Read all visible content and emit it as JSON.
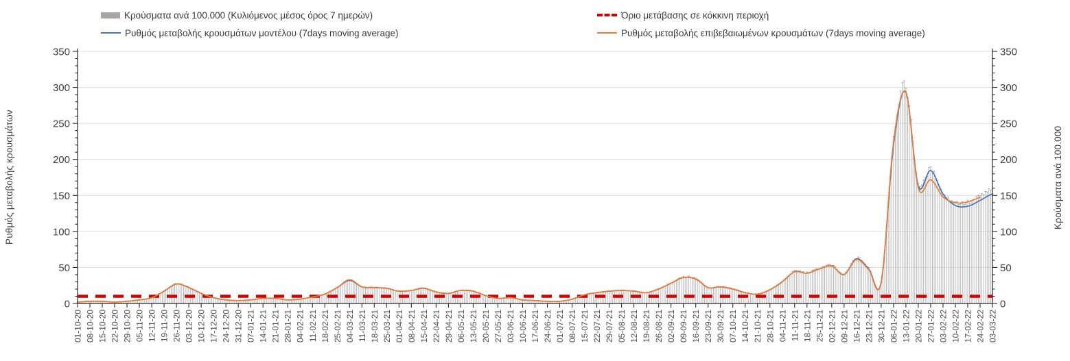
{
  "legend": {
    "items": [
      {
        "key": "cases-bars",
        "label": "Κρούσματα ανά 100.000 (Κυλιόμενος μέσος όρος 7 ημερών)",
        "swatch": "bar",
        "color": "#a6a6a6"
      },
      {
        "key": "red-threshold",
        "label": "Όριο μετάβασης σε κόκκινη περιοχή",
        "swatch": "dash",
        "color": "#d40000"
      },
      {
        "key": "model-rate",
        "label": "Ρυθμός μεταβολής κρουσμάτων μοντέλου (7days moving average)",
        "swatch": "line",
        "color": "#4472c4"
      },
      {
        "key": "confirmed-rate",
        "label": "Ρυθμός μεταβολής επιβεβαιωμένων κρουσμάτων (7days moving average)",
        "swatch": "line",
        "color": "#ed7d31"
      }
    ]
  },
  "axes": {
    "left_title": "Ρυθμός μεταβολής κρουσμάτων",
    "right_title": "Κρούσματα ανά 100.000",
    "y_ticks": [
      0,
      50,
      100,
      150,
      200,
      250,
      300,
      350
    ],
    "y_minor_step": 10,
    "ylim": [
      0,
      350
    ],
    "grid": "horizontal-major"
  },
  "chart_data": {
    "type": "bar+line",
    "title": "",
    "xlabel": "",
    "ylabel_left": "Ρυθμός μεταβολής κρουσμάτων",
    "ylabel_right": "Κρούσματα ανά 100.000",
    "ylim": [
      0,
      350
    ],
    "y_tick_step": 50,
    "legend_position": "top",
    "x": [
      "01-10-20",
      "08-10-20",
      "15-10-20",
      "22-10-20",
      "29-10-20",
      "05-11-20",
      "12-11-20",
      "19-11-20",
      "26-11-20",
      "03-12-20",
      "10-12-20",
      "17-12-20",
      "24-12-20",
      "31-12-20",
      "07-01-21",
      "14-01-21",
      "21-01-21",
      "28-01-21",
      "04-02-21",
      "11-02-21",
      "18-02-21",
      "25-02-21",
      "04-03-21",
      "11-03-21",
      "18-03-21",
      "25-03-21",
      "01-04-21",
      "08-04-21",
      "15-04-21",
      "22-04-21",
      "29-04-21",
      "06-05-21",
      "13-05-21",
      "20-05-21",
      "27-05-21",
      "03-06-21",
      "10-06-21",
      "17-06-21",
      "24-06-21",
      "01-07-21",
      "08-07-21",
      "15-07-21",
      "22-07-21",
      "29-07-21",
      "05-08-21",
      "12-08-21",
      "19-08-21",
      "26-08-21",
      "02-09-21",
      "09-09-21",
      "16-09-21",
      "23-09-21",
      "30-09-21",
      "07-10-21",
      "14-10-21",
      "21-10-21",
      "28-10-21",
      "04-11-21",
      "11-11-21",
      "18-11-21",
      "25-11-21",
      "02-12-21",
      "09-12-21",
      "16-12-21",
      "23-12-21",
      "30-12-21",
      "06-01-22",
      "13-01-22",
      "20-01-22",
      "27-01-22",
      "03-02-22",
      "10-02-22",
      "17-02-22",
      "24-02-22",
      "03-03-22"
    ],
    "series": [
      {
        "name": "Κρούσματα ανά 100.000 (Κυλιόμενος μέσος όρος 7 ημερών)",
        "type": "bar",
        "color": "#b4b4b4",
        "cap_color": "#9c9c9c",
        "values": [
          2,
          3,
          3,
          2,
          3,
          5,
          8,
          17,
          27,
          22,
          14,
          8,
          5,
          4,
          5,
          7,
          7,
          5,
          6,
          9,
          13,
          22,
          32,
          23,
          22,
          21,
          17,
          18,
          21,
          16,
          14,
          18,
          17,
          11,
          7,
          8,
          5,
          4,
          3,
          3,
          6,
          12,
          15,
          17,
          18,
          17,
          15,
          20,
          28,
          36,
          34,
          22,
          23,
          20,
          15,
          13,
          19,
          30,
          44,
          42,
          48,
          52,
          40,
          62,
          48,
          29,
          225,
          295,
          165,
          182,
          150,
          138,
          137,
          146,
          155
        ]
      },
      {
        "name": "Ρυθμός μεταβολής κρουσμάτων μοντέλου (7days moving average)",
        "type": "line",
        "color": "#4472c4",
        "values": [
          2,
          3,
          3,
          2,
          3,
          5,
          8,
          17,
          27,
          22,
          14,
          8,
          5,
          4,
          5,
          7,
          7,
          5,
          6,
          9,
          13,
          22,
          32,
          23,
          22,
          21,
          17,
          18,
          21,
          16,
          14,
          18,
          17,
          11,
          7,
          8,
          5,
          4,
          3,
          3,
          6,
          12,
          15,
          17,
          18,
          17,
          15,
          20,
          28,
          36,
          34,
          22,
          23,
          20,
          15,
          13,
          19,
          30,
          44,
          42,
          48,
          52,
          40,
          62,
          48,
          29,
          220,
          294,
          163,
          185,
          152,
          136,
          135,
          143,
          152
        ]
      },
      {
        "name": "Ρυθμός μεταβολής επιβεβαιωμένων κρουσμάτων (7days moving average)",
        "type": "line",
        "color": "#ed7d31",
        "values": [
          2,
          3,
          3,
          2,
          3,
          5,
          8,
          17,
          27,
          22,
          14,
          8,
          5,
          4,
          5,
          7,
          7,
          5,
          6,
          9,
          13,
          22,
          33,
          23,
          22,
          21,
          17,
          18,
          21,
          16,
          14,
          18,
          17,
          11,
          7,
          8,
          5,
          4,
          3,
          3,
          6,
          12,
          15,
          17,
          18,
          17,
          15,
          20,
          28,
          36,
          34,
          22,
          23,
          20,
          15,
          13,
          19,
          30,
          44,
          42,
          48,
          52,
          40,
          61,
          47,
          29,
          225,
          293,
          160,
          172,
          148,
          140,
          141,
          147,
          null
        ]
      }
    ],
    "threshold": {
      "name": "Όριο μετάβασης σε κόκκινη περιοχή",
      "value": 10,
      "color": "#d40000",
      "style": "dashed"
    }
  }
}
